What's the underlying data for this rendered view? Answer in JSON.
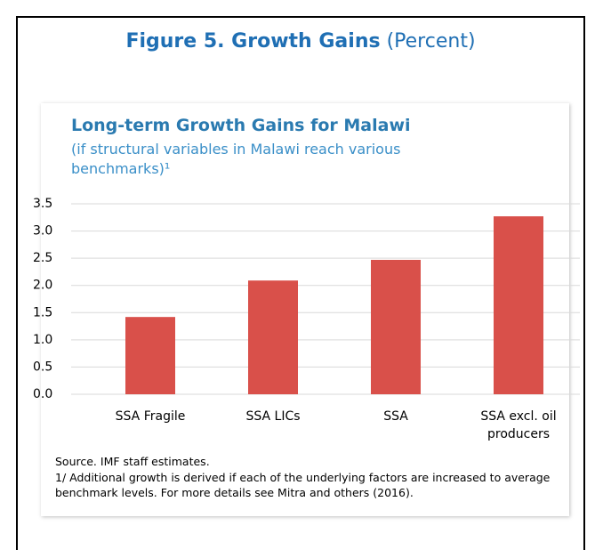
{
  "figure_title": "Figure 5. Growth Gains",
  "figure_unit": "(Percent)",
  "chart_data": {
    "type": "bar",
    "title": "Long-term Growth Gains for Malawi",
    "subtitle": "(if structural variables in Malawi reach various benchmarks)¹",
    "categories": [
      "SSA Fragile",
      "SSA LICs",
      "SSA",
      "SSA excl. oil producers"
    ],
    "values": [
      1.42,
      2.09,
      2.47,
      3.27
    ],
    "color": "#d9504a",
    "ylim": [
      0,
      3.5
    ],
    "yticks": [
      {
        "value": 0,
        "label": "0.0"
      },
      {
        "value": 0.5,
        "label": "0.5"
      },
      {
        "value": 1,
        "label": "1.0"
      },
      {
        "value": 1.5,
        "label": "1.5"
      },
      {
        "value": 2,
        "label": "2.0"
      },
      {
        "value": 2.5,
        "label": "2.5"
      },
      {
        "value": 3,
        "label": "3.0"
      },
      {
        "value": 3.5,
        "label": "3.5"
      }
    ],
    "grid": true
  },
  "notes": [
    "Source. IMF staff estimates.",
    "1/ Additional growth is derived if each of the underlying factors are increased to average benchmark levels. For more details see Mitra and others (2016)."
  ]
}
